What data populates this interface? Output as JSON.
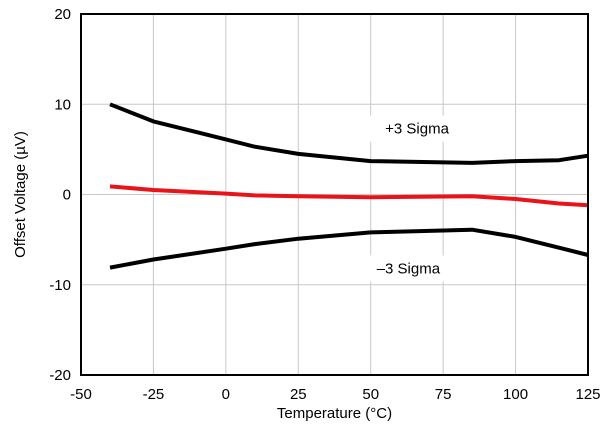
{
  "chart_data": {
    "type": "line",
    "xlabel": "Temperature (°C)",
    "ylabel": "Offset Voltage (µV)",
    "xlim": [
      -50,
      125
    ],
    "ylim": [
      -20,
      20
    ],
    "x_ticks": [
      -50,
      -25,
      0,
      25,
      50,
      75,
      100,
      125
    ],
    "y_ticks": [
      -20,
      -10,
      0,
      10,
      20
    ],
    "x_tick_labels": [
      "-50",
      "-25",
      "0",
      "25",
      "50",
      "75",
      "100",
      "125"
    ],
    "y_tick_labels": [
      "-20",
      "-10",
      "0",
      "10",
      "20"
    ],
    "grid": true,
    "series": [
      {
        "name": "+3 Sigma",
        "color": "#000000",
        "x": [
          -40,
          -25,
          -10,
          0,
          10,
          25,
          50,
          85,
          100,
          115,
          125
        ],
        "y": [
          10.0,
          8.1,
          6.9,
          6.1,
          5.3,
          4.5,
          3.7,
          3.5,
          3.7,
          3.8,
          4.3
        ]
      },
      {
        "color": "#e8141a",
        "x": [
          -40,
          -25,
          0,
          10,
          25,
          50,
          85,
          100,
          115,
          125
        ],
        "y": [
          0.9,
          0.5,
          0.1,
          -0.1,
          -0.2,
          -0.3,
          -0.2,
          -0.5,
          -1.0,
          -1.2
        ]
      },
      {
        "name": "–3 Sigma",
        "color": "#000000",
        "x": [
          -40,
          -25,
          0,
          10,
          25,
          50,
          85,
          100,
          115,
          125
        ],
        "y": [
          -8.1,
          -7.2,
          -6.0,
          -5.5,
          -4.9,
          -4.2,
          -3.9,
          -4.7,
          -5.9,
          -6.7
        ]
      }
    ],
    "annotations": [
      {
        "text": "+3 Sigma",
        "x": 66,
        "y": 7.3
      },
      {
        "text": "–3 Sigma",
        "x": 63,
        "y": -8.2
      }
    ]
  }
}
